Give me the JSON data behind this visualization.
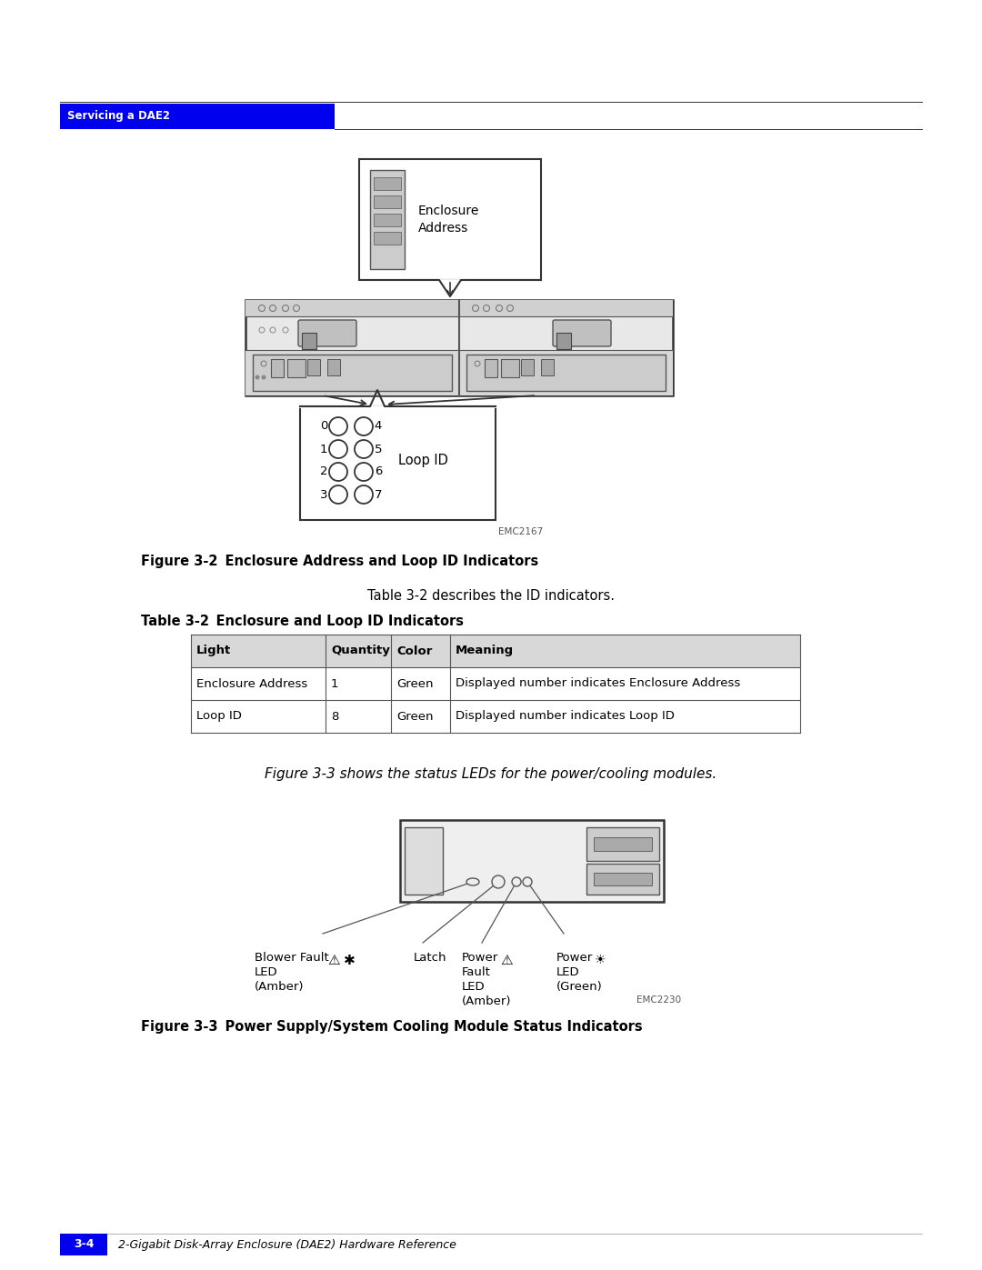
{
  "bg_color": "#ffffff",
  "header_blue": "#0000ee",
  "header_text": "Servicing a DAE2",
  "header_text_color": "#ffffff",
  "fig_title1_bold": "Figure 3-2",
  "fig_title1_rest": "    Enclosure Address and Loop ID Indicators",
  "fig_desc1": "Table 3-2 describes the ID indicators.",
  "table_title_bold": "Table 3-2",
  "table_title_rest": "    Enclosure and Loop ID Indicators",
  "table_headers": [
    "Light",
    "Quantity",
    "Color",
    "Meaning"
  ],
  "table_rows": [
    [
      "Enclosure Address",
      "1",
      "Green",
      "Displayed number indicates Enclosure Address"
    ],
    [
      "Loop ID",
      "8",
      "Green",
      "Displayed number indicates Loop ID"
    ]
  ],
  "mid_text": "Figure 3-3 shows the status LEDs for the power/cooling modules.",
  "fig_title2_bold": "Figure 3-3",
  "fig_title2_rest": "    Power Supply/System Cooling Module Status Indicators",
  "emc_label1": "EMC2167",
  "emc_label2": "EMC2230",
  "footer_blue": "#0000ee",
  "footer_text": "3-4",
  "footer_sub": "2-Gigabit Disk-Array Enclosure (DAE2) Hardware Reference",
  "label_blower": "Blower Fault",
  "label_blower2": "LED",
  "label_blower3": "(Amber)",
  "label_latch": "Latch",
  "label_power": "Power",
  "label_power_fault": "Fault",
  "label_power_fault2": "LED",
  "label_power_fault3": "(Amber)",
  "label_power_led": "Power",
  "label_power_led2": "LED",
  "label_power_led3": "(Green)"
}
